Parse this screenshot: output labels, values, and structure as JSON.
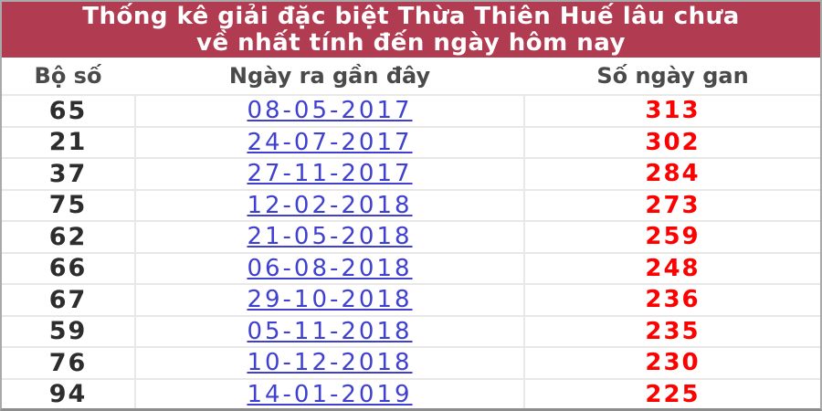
{
  "banner": {
    "title_line1": "Thống kê giải đặc biệt Thừa Thiên Huế lâu chưa",
    "title_line2": "về nhất tính đến ngày hôm nay"
  },
  "table": {
    "headers": {
      "number": "Bộ số",
      "date": "Ngày ra gần đây",
      "days": "Số ngày gan"
    },
    "rows": [
      {
        "number": "65",
        "date": "08-05-2017",
        "days": "313"
      },
      {
        "number": "21",
        "date": "24-07-2017",
        "days": "302"
      },
      {
        "number": "37",
        "date": "27-11-2017",
        "days": "284"
      },
      {
        "number": "75",
        "date": "12-02-2018",
        "days": "273"
      },
      {
        "number": "62",
        "date": "21-05-2018",
        "days": "259"
      },
      {
        "number": "66",
        "date": "06-08-2018",
        "days": "248"
      },
      {
        "number": "67",
        "date": "29-10-2018",
        "days": "236"
      },
      {
        "number": "59",
        "date": "05-11-2018",
        "days": "235"
      },
      {
        "number": "76",
        "date": "10-12-2018",
        "days": "230"
      },
      {
        "number": "94",
        "date": "14-01-2019",
        "days": "225"
      }
    ]
  },
  "colors": {
    "banner_background": "#b13b51",
    "banner_text": "#ffffff",
    "header_text": "#4a4a4a",
    "number_text": "#2d2d2d",
    "date_link": "#4040d0",
    "days_text": "#fe0000",
    "row_border": "#e8e8e8",
    "outer_border": "#a9a9a9"
  }
}
